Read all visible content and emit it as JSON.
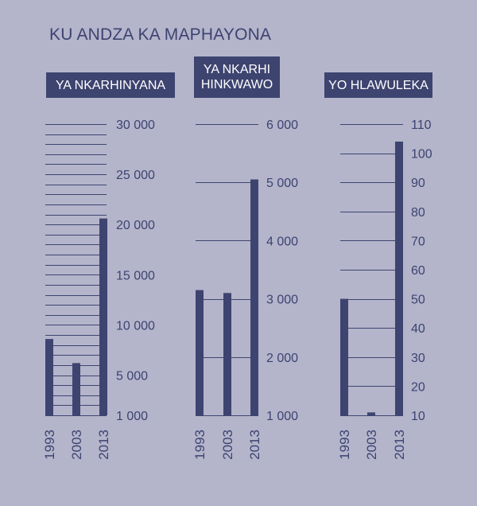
{
  "title": "KU ANDZA KA MAPHAYONA",
  "colors": {
    "background": "#b4b5cb",
    "bars": "#3e4470",
    "label_bg": "#3e4470",
    "label_text": "#ffffff",
    "text": "#3d4370"
  },
  "chart_data": [
    {
      "type": "bar",
      "panel_label": "YA NKARHINYANA",
      "categories": [
        "1993",
        "2003",
        "2013"
      ],
      "values": [
        8600,
        6200,
        20600
      ],
      "ylim": [
        1000,
        30000
      ],
      "major_ticks": [
        1000,
        5000,
        10000,
        15000,
        20000,
        25000,
        30000
      ],
      "tick_labels": [
        "1 000",
        "5 000",
        "10 000",
        "15 000",
        "20 000",
        "25 000",
        "30 000"
      ],
      "grid_step": 1000,
      "grid": true
    },
    {
      "type": "bar",
      "panel_label": "YA NKARHI HINKWAWO",
      "categories": [
        "1993",
        "2003",
        "2013"
      ],
      "values": [
        3150,
        3100,
        5050
      ],
      "ylim": [
        1000,
        6000
      ],
      "major_ticks": [
        1000,
        2000,
        3000,
        4000,
        5000,
        6000
      ],
      "tick_labels": [
        "1 000",
        "2 000",
        "3 000",
        "4 000",
        "5 000",
        "6 000"
      ],
      "grid_step": 1000,
      "grid": true
    },
    {
      "type": "bar",
      "panel_label": "YO HLAWULEKA",
      "categories": [
        "1993",
        "2003",
        "2013"
      ],
      "values": [
        50,
        11,
        104
      ],
      "ylim": [
        10,
        110
      ],
      "major_ticks": [
        10,
        20,
        30,
        40,
        50,
        60,
        70,
        80,
        90,
        100,
        110
      ],
      "tick_labels": [
        "10",
        "20",
        "30",
        "40",
        "50",
        "60",
        "70",
        "80",
        "90",
        "100",
        "110"
      ],
      "grid_step": 10,
      "grid": true
    }
  ]
}
